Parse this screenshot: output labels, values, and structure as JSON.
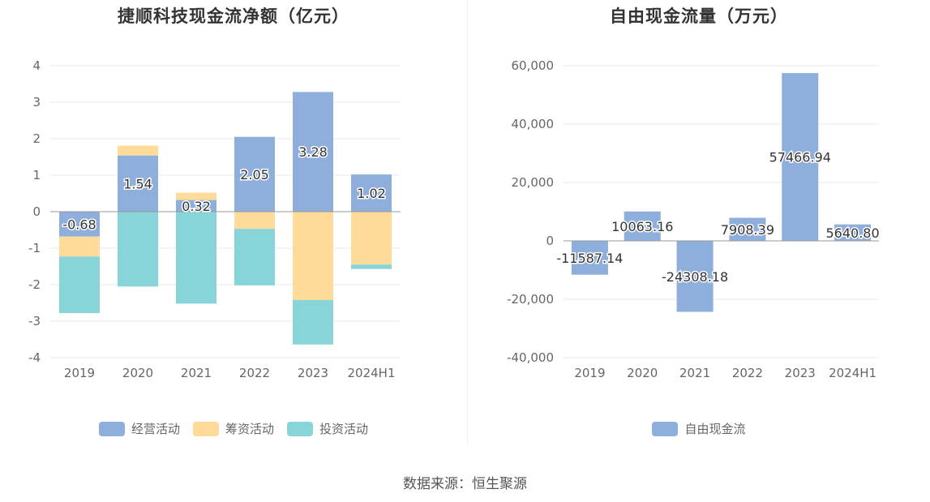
{
  "source": "数据来源：恒生聚源",
  "chart_data": [
    {
      "type": "bar",
      "title": "捷顺科技现金流净额（亿元）",
      "categories": [
        "2019",
        "2020",
        "2021",
        "2022",
        "2023",
        "2024H1"
      ],
      "stacked": true,
      "ylim": [
        -4,
        4
      ],
      "yticks": [
        4,
        3,
        2,
        1,
        0,
        -1,
        -2,
        -3,
        -4
      ],
      "grid": true,
      "legend_position": "bottom",
      "series": [
        {
          "name": "经营活动",
          "color": "#8eaedb",
          "values": [
            -0.68,
            1.54,
            0.32,
            2.05,
            3.28,
            1.02
          ],
          "show_labels": true
        },
        {
          "name": "筹资活动",
          "color": "#ffdb99",
          "values": [
            -0.55,
            0.27,
            0.2,
            -0.47,
            -2.42,
            -1.45
          ],
          "show_labels": false
        },
        {
          "name": "投资活动",
          "color": "#87d5d8",
          "values": [
            -1.55,
            -2.05,
            -2.52,
            -1.55,
            -1.22,
            -0.12
          ],
          "show_labels": false
        }
      ]
    },
    {
      "type": "bar",
      "title": "自由现金流量（万元）",
      "categories": [
        "2019",
        "2020",
        "2021",
        "2022",
        "2023",
        "2024H1"
      ],
      "ylim": [
        -40000,
        60000
      ],
      "yticks": [
        "60,000",
        "40,000",
        "20,000",
        "0",
        "-20,000",
        "-40,000"
      ],
      "ytick_values": [
        60000,
        40000,
        20000,
        0,
        -20000,
        -40000
      ],
      "grid": true,
      "legend_position": "bottom",
      "series": [
        {
          "name": "自由现金流",
          "color": "#8eaedb",
          "values": [
            -11587.14,
            10063.16,
            -24308.18,
            7908.39,
            57466.94,
            5640.8
          ],
          "labels": [
            "-11587.14",
            "10063.16",
            "-24308.18",
            "7908.39",
            "57466.94",
            "5640.80"
          ]
        }
      ]
    }
  ]
}
